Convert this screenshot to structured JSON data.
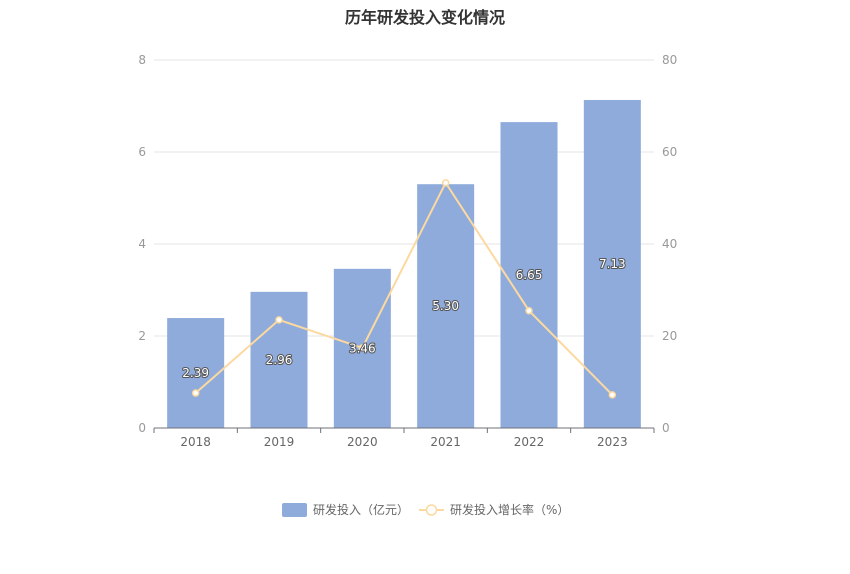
{
  "chart_data": {
    "type": "bar",
    "title": "历年研发投入变化情况",
    "categories": [
      "2018",
      "2019",
      "2020",
      "2021",
      "2022",
      "2023"
    ],
    "series": [
      {
        "name": "研发投入（亿元）",
        "type": "bar",
        "axis": "left",
        "color": "#8eabdb",
        "values": [
          2.39,
          2.96,
          3.46,
          5.3,
          6.65,
          7.13
        ],
        "labels": [
          "2.39",
          "2.96",
          "3.46",
          "5.30",
          "6.65",
          "7.13"
        ]
      },
      {
        "name": "研发投入增长率（%）",
        "type": "line",
        "axis": "right",
        "color": "#fbd9a0",
        "values": [
          7.6,
          23.5,
          17.4,
          53.3,
          25.5,
          7.2
        ]
      }
    ],
    "y_left": {
      "min": 0,
      "max": 8,
      "ticks": [
        0,
        2,
        4,
        6,
        8
      ]
    },
    "y_right": {
      "min": 0,
      "max": 80,
      "ticks": [
        0,
        20,
        40,
        60,
        80
      ]
    },
    "grid": true,
    "legend_position": "bottom-center"
  }
}
